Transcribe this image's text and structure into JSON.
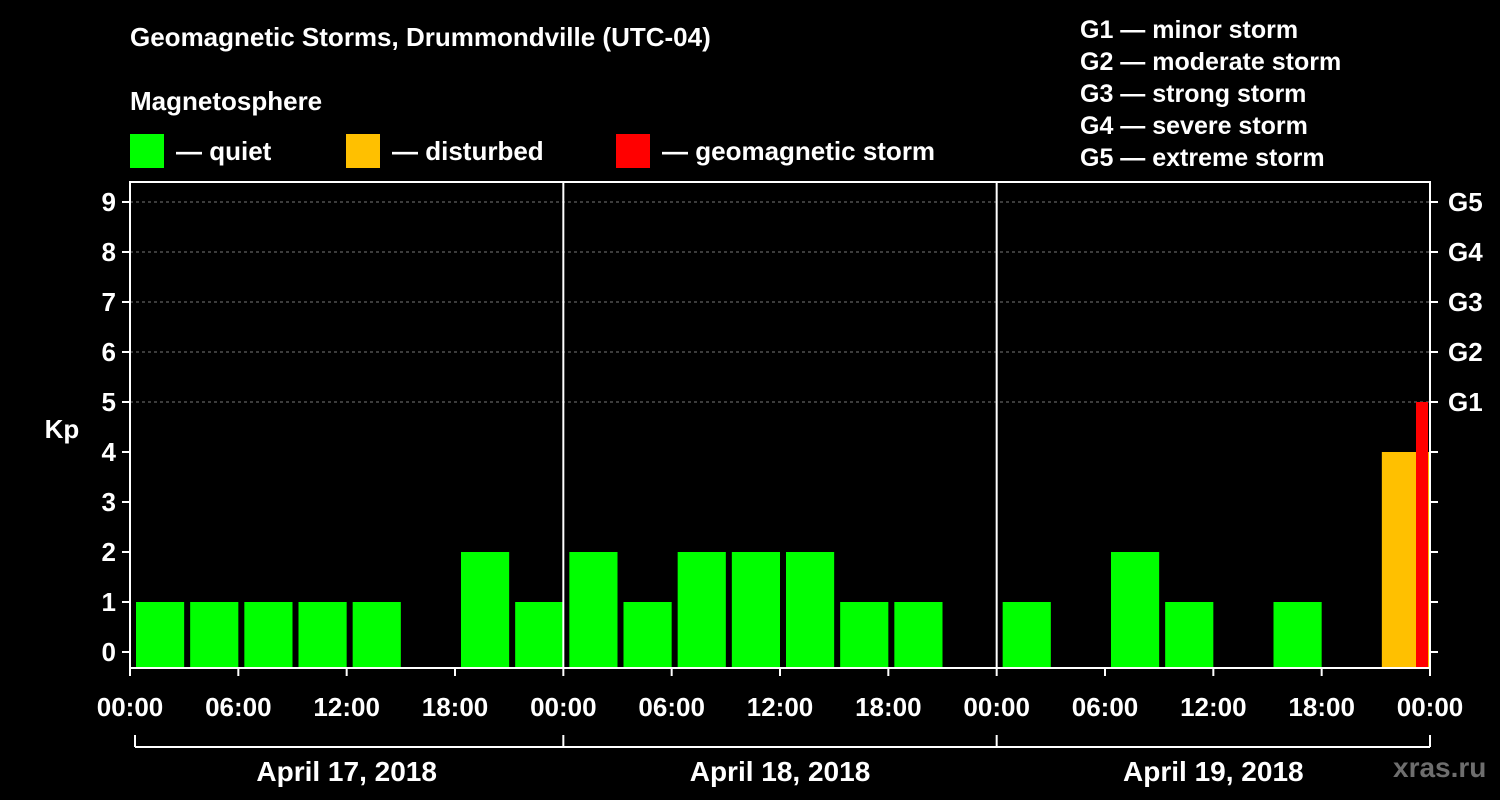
{
  "header": {
    "title": "Geomagnetic Storms, Drummondville (UTC-04)",
    "subtitle": "Magnetosphere"
  },
  "legend": [
    {
      "label": "— quiet",
      "color": "#00ff00"
    },
    {
      "label": "— disturbed",
      "color": "#ffc000"
    },
    {
      "label": "— geomagnetic storm",
      "color": "#ff0000"
    }
  ],
  "g_scale": [
    "G1 — minor storm",
    "G2 — moderate storm",
    "G3 — strong storm",
    "G4 — severe storm",
    "G5 — extreme storm"
  ],
  "watermark": "xras.ru",
  "chart_data": {
    "type": "bar",
    "ylabel": "Kp",
    "ylim": [
      0,
      9
    ],
    "y_ticks": [
      0,
      1,
      2,
      3,
      4,
      5,
      6,
      7,
      8,
      9
    ],
    "right_axis_labels": [
      {
        "kp": 5,
        "label": "G1"
      },
      {
        "kp": 6,
        "label": "G2"
      },
      {
        "kp": 7,
        "label": "G3"
      },
      {
        "kp": 8,
        "label": "G4"
      },
      {
        "kp": 9,
        "label": "G5"
      }
    ],
    "x_tick_labels": [
      "00:00",
      "06:00",
      "12:00",
      "18:00",
      "00:00",
      "06:00",
      "12:00",
      "18:00",
      "00:00",
      "06:00",
      "12:00",
      "18:00",
      "00:00"
    ],
    "dates": [
      "April 17, 2018",
      "April 18, 2018",
      "April 19, 2018"
    ],
    "grid": "dashed horizontal at Kp 5-9",
    "colors": {
      "quiet": "#00ff00",
      "disturbed": "#ffc000",
      "storm": "#ff0000"
    },
    "categories": [
      "04-17 00:00",
      "04-17 03:00",
      "04-17 06:00",
      "04-17 09:00",
      "04-17 12:00",
      "04-17 15:00",
      "04-17 18:00",
      "04-17 21:00",
      "04-18 00:00",
      "04-18 03:00",
      "04-18 06:00",
      "04-18 09:00",
      "04-18 12:00",
      "04-18 15:00",
      "04-18 18:00",
      "04-18 21:00",
      "04-19 00:00",
      "04-19 03:00",
      "04-19 06:00",
      "04-19 09:00",
      "04-19 12:00",
      "04-19 15:00",
      "04-19 18:00",
      "04-19 21:00",
      "04-19 23:00"
    ],
    "values": [
      1,
      1,
      1,
      1,
      1,
      0,
      2,
      1,
      2,
      1,
      2,
      2,
      2,
      1,
      1,
      0,
      1,
      0,
      2,
      1,
      0,
      1,
      0,
      4,
      5
    ],
    "levels": [
      "quiet",
      "quiet",
      "quiet",
      "quiet",
      "quiet",
      "quiet",
      "quiet",
      "quiet",
      "quiet",
      "quiet",
      "quiet",
      "quiet",
      "quiet",
      "quiet",
      "quiet",
      "quiet",
      "quiet",
      "quiet",
      "quiet",
      "quiet",
      "quiet",
      "quiet",
      "quiet",
      "disturbed",
      "storm"
    ]
  }
}
